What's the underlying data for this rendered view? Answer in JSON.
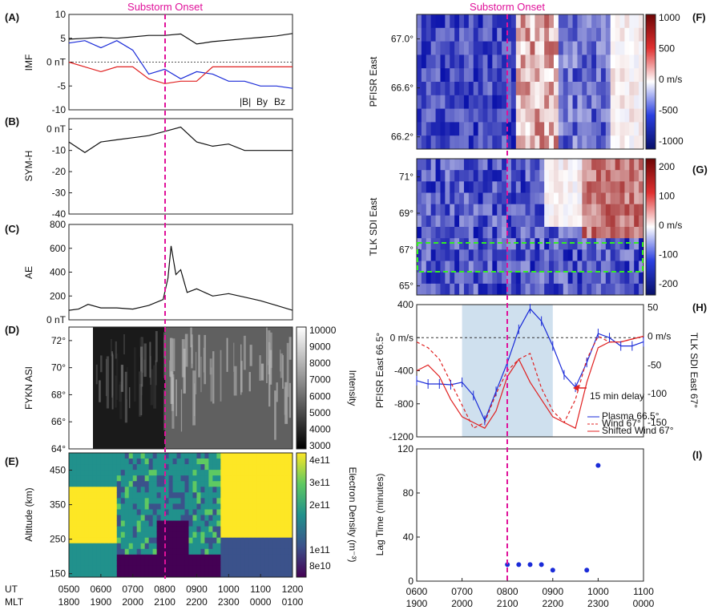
{
  "onset_label": "Substorm Onset",
  "colors": {
    "onset": "#e0119a",
    "black": "#111111",
    "blue": "#1a2bd8",
    "red": "#e02020",
    "green": "#33ee22",
    "shade": "#cfe0ee"
  },
  "chart_data": [
    {
      "id": "A",
      "type": "line",
      "panel_label": "(A)",
      "ylabel": "IMF",
      "ylim": [
        -10,
        10
      ],
      "yticks": [
        "10",
        "5",
        "0 nT",
        "-5",
        "-10"
      ],
      "legend": {
        "b": "|B|",
        "by": "By",
        "bz": "Bz"
      },
      "x": [
        0,
        0.5,
        1,
        1.5,
        2,
        2.5,
        3,
        3.5,
        4,
        4.5,
        5,
        5.5,
        6,
        6.5,
        7
      ],
      "series": [
        {
          "name": "|B|",
          "values": [
            4.8,
            5.0,
            5.2,
            5.0,
            5.3,
            5.6,
            5.6,
            5.9,
            3.8,
            4.3,
            4.6,
            4.9,
            5.2,
            5.5,
            6.0
          ]
        },
        {
          "name": "By",
          "values": [
            4,
            4.5,
            3,
            4.5,
            2.5,
            -2.5,
            -1.5,
            -3.5,
            -2,
            -2.5,
            -4,
            -4,
            -5,
            -5,
            -5.5
          ]
        },
        {
          "name": "Bz",
          "values": [
            0,
            -1,
            -2,
            -1,
            -1,
            -3.5,
            -4.5,
            -4,
            -4,
            -1,
            -1,
            -1,
            -1,
            -1,
            -1
          ]
        }
      ]
    },
    {
      "id": "B",
      "type": "line",
      "panel_label": "(B)",
      "ylabel": "SYM-H",
      "ylim": [
        -40,
        5
      ],
      "yticks": [
        "0 nT",
        "-10",
        "-20",
        "-30",
        "-40"
      ],
      "x": [
        0,
        0.5,
        1,
        1.5,
        2,
        2.5,
        3,
        3.5,
        4,
        4.5,
        5,
        5.5,
        6,
        6.5,
        7
      ],
      "series": [
        {
          "name": "SYM-H",
          "values": [
            -6,
            -11,
            -6,
            -5,
            -4,
            -3,
            -1,
            1,
            -6,
            -8,
            -7,
            -10,
            -10,
            -10,
            -10
          ]
        }
      ]
    },
    {
      "id": "C",
      "type": "line",
      "panel_label": "(C)",
      "ylabel": "AE",
      "ylim": [
        0,
        800
      ],
      "yticks": [
        "800",
        "600",
        "400",
        "200",
        "0 nT"
      ],
      "x": [
        0,
        0.3,
        0.6,
        1,
        1.5,
        2,
        2.5,
        2.95,
        3.1,
        3.2,
        3.35,
        3.5,
        3.7,
        4,
        4.5,
        5,
        5.5,
        6,
        6.5,
        7
      ],
      "series": [
        {
          "name": "AE",
          "values": [
            80,
            90,
            130,
            100,
            100,
            90,
            120,
            170,
            350,
            620,
            380,
            420,
            230,
            260,
            200,
            220,
            190,
            160,
            120,
            80
          ]
        }
      ]
    },
    {
      "id": "D",
      "type": "heatmap",
      "panel_label": "(D)",
      "ylabel": "FYKN ASI",
      "ylim": [
        64,
        73
      ],
      "yticks": [
        "72°",
        "70°",
        "68°",
        "66°",
        "64°"
      ],
      "colorbar_label": "Intensity",
      "colorbar_ticks": [
        "10000",
        "9000",
        "8000",
        "7000",
        "6000",
        "5000",
        "4000",
        "3000"
      ]
    },
    {
      "id": "E",
      "type": "heatmap",
      "panel_label": "(E)",
      "ylabel": "Altitude (km)",
      "ylim": [
        150,
        500
      ],
      "yticks": [
        "450",
        "350",
        "250",
        "150"
      ],
      "colorbar_label": "Electron Density (m⁻³)",
      "colorbar_ticks": [
        "4e11",
        "3e11",
        "2e11",
        "1e11",
        "8e10"
      ],
      "xlabel_rows": [
        "UT",
        "MLT"
      ],
      "x_ticks_ut": [
        "0500",
        "0600",
        "0700",
        "0800",
        "0900",
        "1000",
        "1100",
        "1200"
      ],
      "x_ticks_mlt": [
        "1800",
        "1900",
        "2000",
        "2100",
        "2200",
        "2300",
        "0000",
        "0100"
      ]
    },
    {
      "id": "F",
      "type": "heatmap",
      "panel_label": "(F)",
      "ylabel": "PFISR East",
      "ylim": [
        66.1,
        67.2
      ],
      "yticks": [
        "67.0°",
        "66.6°",
        "66.2°"
      ],
      "colorbar_ticks": [
        "1000",
        "500",
        "0 m/s",
        "-500",
        "-1000"
      ]
    },
    {
      "id": "G",
      "type": "heatmap",
      "panel_label": "(G)",
      "ylabel": "TLK SDI East",
      "ylim": [
        64.5,
        72
      ],
      "yticks": [
        "71°",
        "69°",
        "67°",
        "65°"
      ],
      "colorbar_ticks": [
        "200",
        "100",
        "0 m/s",
        "-100",
        "-200"
      ]
    },
    {
      "id": "H",
      "type": "line",
      "panel_label": "(H)",
      "ylabel": "PFISR East 66.5°",
      "ylabel2": "TLK SDI East 67°",
      "ylim": [
        -1200,
        400
      ],
      "ylim2": [
        -175,
        55
      ],
      "yticks": [
        "400",
        "0 m/s",
        "-400",
        "-800",
        "-1200"
      ],
      "yticks2": [
        "50",
        "0 m/s",
        "-50",
        "-100",
        "-150"
      ],
      "annotation": "15 min delay",
      "legend": [
        "Plasma 66.5°",
        "Wind 67°",
        "Shifted Wind 67°"
      ],
      "x": [
        0,
        0.25,
        0.5,
        0.75,
        1,
        1.25,
        1.5,
        1.75,
        2,
        2.25,
        2.5,
        2.75,
        3,
        3.25,
        3.5,
        3.75,
        4,
        4.25,
        4.5,
        4.75,
        5
      ],
      "series": [
        {
          "name": "Plasma 66.5°",
          "values": [
            -520,
            -560,
            -560,
            -570,
            -540,
            -700,
            -1000,
            -650,
            -300,
            100,
            350,
            200,
            -100,
            -450,
            -600,
            -300,
            50,
            0,
            -100,
            -100,
            -50
          ]
        },
        {
          "name": "Wind 67°",
          "values": [
            -10,
            -20,
            -40,
            -80,
            -120,
            -160,
            -150,
            -100,
            -60,
            -40,
            -30,
            -90,
            -130,
            -150,
            -110,
            -40,
            0,
            -10,
            -10,
            -5,
            0
          ]
        },
        {
          "name": "Shifted Wind 67°",
          "values": [
            -60,
            -50,
            -70,
            -110,
            -140,
            -150,
            -160,
            -130,
            -70,
            -40,
            -80,
            -110,
            -140,
            -150,
            -160,
            -80,
            -20,
            -10,
            -10,
            -5,
            0
          ]
        }
      ]
    },
    {
      "id": "I",
      "type": "scatter",
      "panel_label": "(I)",
      "ylabel": "Lag Time (minutes)",
      "ylim": [
        0,
        120
      ],
      "yticks": [
        "120",
        "80",
        "40",
        "0"
      ],
      "x_ticks_ut": [
        "0600",
        "0700",
        "0800",
        "0900",
        "1000",
        "1100"
      ],
      "x_ticks_mlt": [
        "1900",
        "2000",
        "2100",
        "2200",
        "2300",
        "0000"
      ],
      "x": [
        2.0,
        2.25,
        2.5,
        2.75,
        3.0,
        3.75,
        4.0
      ],
      "values": [
        15,
        15,
        15,
        15,
        10,
        10,
        105
      ]
    }
  ]
}
